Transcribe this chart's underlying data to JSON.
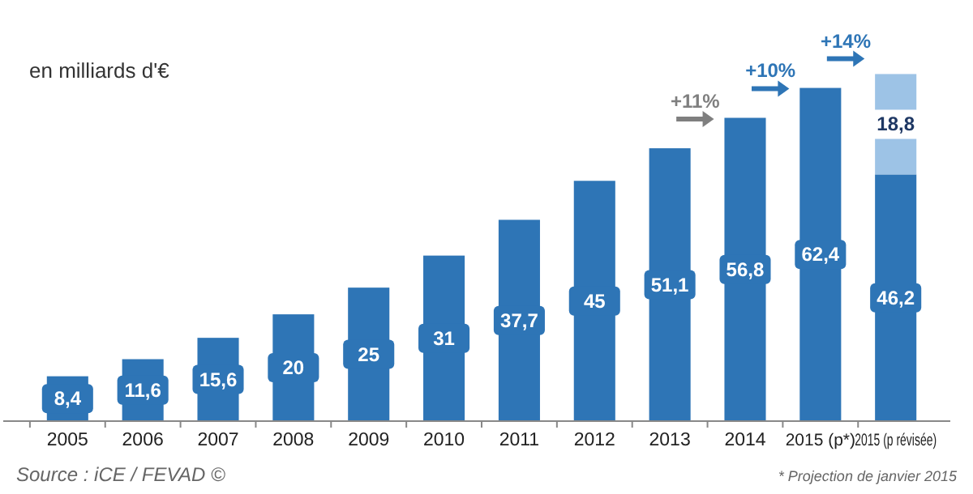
{
  "chart_data": {
    "type": "bar",
    "stacked": true,
    "ylabel": "en milliards d'€",
    "categories": [
      "2005",
      "2006",
      "2007",
      "2008",
      "2009",
      "2010",
      "2011",
      "2012",
      "2013",
      "2014",
      "2015 (p*)",
      "2015 (p révisée)"
    ],
    "series": [
      {
        "color": "#2e75b6",
        "values": [
          8.4,
          11.6,
          15.6,
          20,
          25,
          31,
          37.7,
          45,
          51.1,
          56.8,
          62.4,
          46.2
        ],
        "value_labels": [
          "8,4",
          "11,6",
          "15,6",
          "20",
          "25",
          "31",
          "37,7",
          "45",
          "51,1",
          "56,8",
          "62,4",
          "46,2"
        ]
      },
      {
        "color": "#9dc3e6",
        "values": [
          null,
          null,
          null,
          null,
          null,
          null,
          null,
          null,
          null,
          null,
          null,
          18.8
        ],
        "value_labels": [
          null,
          null,
          null,
          null,
          null,
          null,
          null,
          null,
          null,
          null,
          null,
          "18,8"
        ]
      }
    ],
    "annotations": [
      "+11%",
      "+10%",
      "+14%",
      "Source : iCE / FEVAD ©",
      "* Projection de janvier 2015"
    ]
  }
}
